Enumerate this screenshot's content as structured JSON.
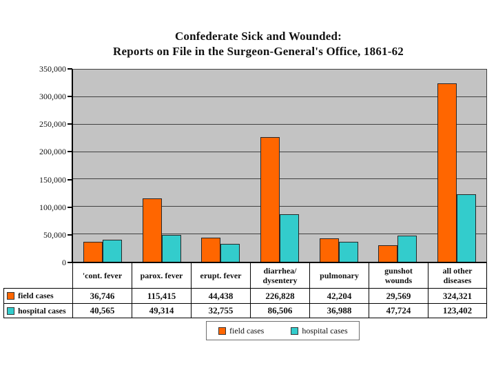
{
  "title": {
    "line1": "Confederate Sick and Wounded:",
    "line2": "Reports on File in the Surgeon-General's Office, 1861-62"
  },
  "chart_data": {
    "type": "bar",
    "title": "Confederate Sick and Wounded: Reports on File in the Surgeon-General's Office, 1861-62",
    "categories": [
      "'cont. fever",
      "parox. fever",
      "erupt. fever",
      "diarrhea/\ndysentery",
      "pulmonary",
      "gunshot\nwounds",
      "all other\ndiseases"
    ],
    "series": [
      {
        "name": "field cases",
        "color": "#FF6600",
        "values": [
          36746,
          115415,
          44438,
          226828,
          42204,
          29569,
          324321
        ],
        "value_labels": [
          "36,746",
          "115,415",
          "44,438",
          "226,828",
          "42,204",
          "29,569",
          "324,321"
        ]
      },
      {
        "name": "hospital cases",
        "color": "#33CCCC",
        "values": [
          40565,
          49314,
          32755,
          86506,
          36988,
          47724,
          123402
        ],
        "value_labels": [
          "40,565",
          "49,314",
          "32,755",
          "86,506",
          "36,988",
          "47,724",
          "123,402"
        ]
      }
    ],
    "xlabel": "",
    "ylabel": "",
    "ylim": [
      0,
      350000
    ],
    "ytick_interval": 50000,
    "ytick_labels": [
      "0",
      "50,000",
      "100,000",
      "150,000",
      "200,000",
      "250,000",
      "300,000",
      "350,000"
    ],
    "grid": true,
    "plot_bg_color": "#C3C3C3",
    "gridline_color": "#404040",
    "legend_position": "bottom",
    "data_table_shown": true
  },
  "legend": {
    "items": [
      {
        "label": "field cases",
        "color": "#FF6600"
      },
      {
        "label": "hospital cases",
        "color": "#33CCCC"
      }
    ]
  }
}
